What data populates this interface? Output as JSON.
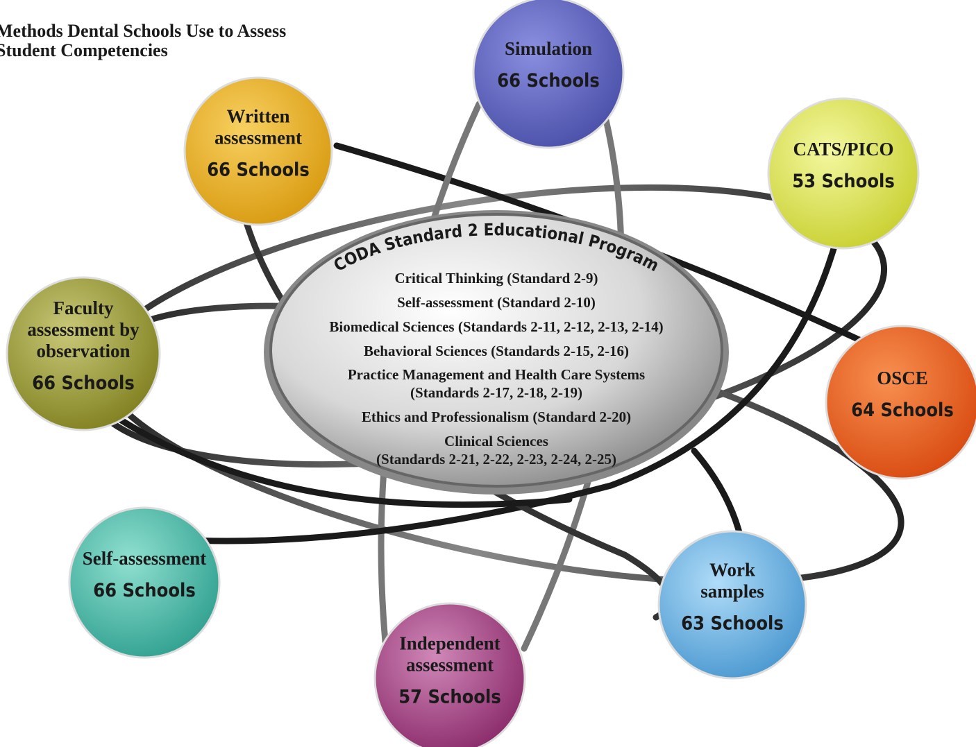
{
  "title": {
    "lines": [
      "Methods Dental Schools Use to Assess",
      "Student Competencies"
    ]
  },
  "center": {
    "heading": "CODA Standard 2 Educational Program",
    "items": [
      "Critical Thinking (Standard 2-9)",
      "Self-assessment (Standard 2-10)",
      "Biomedical Sciences (Standards 2-11, 2-12, 2-13, 2-14)",
      "Behavioral Sciences (Standards 2-15, 2-16)",
      "Practice Management and Health Care Systems",
      "(Standards 2-17, 2-18, 2-19)",
      "Ethics and Professionalism (Standard 2-20)",
      "Clinical Sciences",
      "(Standards 2-21, 2-22, 2-23, 2-24, 2-25)"
    ]
  },
  "nodes": [
    {
      "label": [
        "Simulation"
      ],
      "count": "66 Schools"
    },
    {
      "label": [
        "Written",
        "assessment"
      ],
      "count": "66 Schools"
    },
    {
      "label": [
        "CATS/PICO"
      ],
      "count": "53 Schools"
    },
    {
      "label": [
        "Faculty",
        "assessment by",
        "observation"
      ],
      "count": "66 Schools"
    },
    {
      "label": [
        "OSCE"
      ],
      "count": "64 Schools"
    },
    {
      "label": [
        "Self-assessment"
      ],
      "count": "66 Schools"
    },
    {
      "label": [
        "Work",
        "samples"
      ],
      "count": "63 Schools"
    },
    {
      "label": [
        "Independent",
        "assessment"
      ],
      "count": "57 Schools"
    }
  ]
}
